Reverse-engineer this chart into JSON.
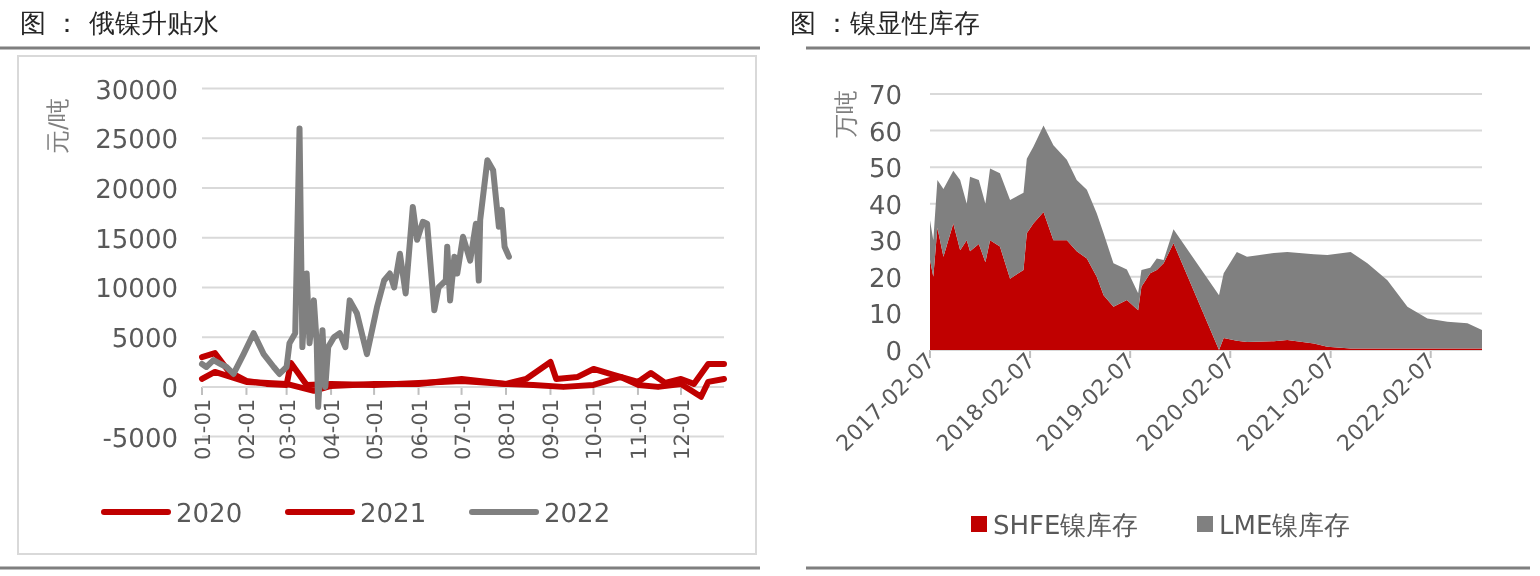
{
  "chart_data": [
    {
      "type": "line",
      "title": "图 ： 俄镍升贴水",
      "ylabel": "元/吨",
      "xlim": [
        "--01-01",
        "--12-31"
      ],
      "ylim": [
        -5000,
        30000
      ],
      "yticks": [
        -5000,
        0,
        5000,
        10000,
        15000,
        20000,
        25000,
        30000
      ],
      "xticks": [
        {
          "value": "--01-01",
          "label": "01-01"
        },
        {
          "value": "--02-01",
          "label": "02-01"
        },
        {
          "value": "--03-01",
          "label": "03-01"
        },
        {
          "value": "--04-01",
          "label": "04-01"
        },
        {
          "value": "--05-01",
          "label": "05-01"
        },
        {
          "value": "--06-01",
          "label": "06-01"
        },
        {
          "value": "--07-01",
          "label": "07-01"
        },
        {
          "value": "--08-01",
          "label": "08-01"
        },
        {
          "value": "--09-01",
          "label": "09-01"
        },
        {
          "value": "--10-01",
          "label": "10-01"
        },
        {
          "value": "--11-01",
          "label": "11-01"
        },
        {
          "value": "--12-01",
          "label": "12-01"
        }
      ],
      "grid": "y",
      "legend": "bottom",
      "series": [
        {
          "name": "2020",
          "color": "#c00000",
          "x": [
            "--01-01",
            "--01-10",
            "--01-20",
            "--02-01",
            "--02-15",
            "--03-01",
            "--03-04",
            "--03-15",
            "--04-01",
            "--05-01",
            "--06-01",
            "--07-01",
            "--08-01",
            "--08-15",
            "--09-01",
            "--09-05",
            "--09-20",
            "--10-01",
            "--10-15",
            "--11-01",
            "--11-10",
            "--11-20",
            "--12-01",
            "--12-10",
            "--12-20",
            "--12-31"
          ],
          "values": [
            3000,
            3400,
            1500,
            600,
            300,
            200,
            2400,
            200,
            300,
            200,
            400,
            600,
            300,
            800,
            2500,
            800,
            1000,
            1800,
            1200,
            500,
            1400,
            400,
            800,
            300,
            2300,
            2300
          ]
        },
        {
          "name": "2021",
          "color": "#c00000",
          "x": [
            "--01-01",
            "--01-10",
            "--02-01",
            "--03-01",
            "--03-20",
            "--04-01",
            "--05-01",
            "--06-01",
            "--07-01",
            "--08-01",
            "--08-20",
            "--09-10",
            "--10-01",
            "--10-20",
            "--11-01",
            "--11-15",
            "--12-01",
            "--12-15",
            "--12-20",
            "--12-31"
          ],
          "values": [
            800,
            1500,
            500,
            300,
            -400,
            100,
            300,
            300,
            800,
            300,
            200,
            0,
            200,
            1000,
            200,
            0,
            300,
            -1000,
            500,
            800
          ]
        },
        {
          "name": "2022",
          "color": "#808080",
          "x": [
            "--01-01",
            "--01-04",
            "--01-09",
            "--01-14",
            "--01-18",
            "--01-23",
            "--01-30",
            "--02-06",
            "--02-13",
            "--02-20",
            "--02-24",
            "--03-01",
            "--03-03",
            "--03-07",
            "--03-10",
            "--03-12",
            "--03-15",
            "--03-17",
            "--03-20",
            "--03-22",
            "--03-23",
            "--03-26",
            "--03-28",
            "--03-30",
            "--04-03",
            "--04-07",
            "--04-11",
            "--04-14",
            "--04-19",
            "--04-26",
            "--05-03",
            "--05-08",
            "--05-12",
            "--05-15",
            "--05-19",
            "--05-23",
            "--05-28",
            "--05-31",
            "--06-04",
            "--06-07",
            "--06-12",
            "--06-15",
            "--06-20",
            "--06-21",
            "--06-23",
            "--06-26",
            "--06-28",
            "--07-02",
            "--07-07",
            "--07-11",
            "--07-13",
            "--07-14",
            "--07-19",
            "--07-23",
            "--07-27",
            "--07-29",
            "--07-31",
            "--08-03"
          ],
          "values": [
            2300,
            2000,
            2700,
            2300,
            2000,
            1300,
            3300,
            5400,
            3300,
            2000,
            1300,
            2000,
            4400,
            5400,
            26000,
            4000,
            11400,
            4400,
            8700,
            4400,
            -2000,
            5700,
            0,
            4000,
            5000,
            5400,
            4000,
            8700,
            7400,
            3300,
            8000,
            10700,
            11400,
            10000,
            13400,
            9400,
            18100,
            14800,
            16600,
            16400,
            7700,
            10000,
            10700,
            14100,
            8700,
            13100,
            11400,
            15100,
            12700,
            16400,
            10700,
            16800,
            22800,
            21800,
            16100,
            17800,
            14100,
            13100
          ]
        }
      ]
    },
    {
      "type": "area",
      "title": "图 ：镍显性库存",
      "ylabel": "万吨",
      "stacked": true,
      "xlim": [
        "2017-02-07",
        "2022-08-13"
      ],
      "ylim": [
        0,
        70
      ],
      "yticks": [
        0,
        10,
        20,
        30,
        40,
        50,
        60,
        70
      ],
      "xticks": [
        "2017-02-07",
        "2018-02-07",
        "2019-02-07",
        "2020-02-07",
        "2021-02-07",
        "2022-02-07"
      ],
      "grid": "y",
      "legend": "bottom",
      "x": [
        "2017-02-07",
        "2017-02-19",
        "2017-03-06",
        "2017-03-28",
        "2017-05-03",
        "2017-05-28",
        "2017-06-21",
        "2017-07-03",
        "2017-08-04",
        "2017-08-28",
        "2017-09-14",
        "2017-10-20",
        "2017-11-26",
        "2018-01-14",
        "2018-01-26",
        "2018-02-19",
        "2018-03-28",
        "2018-05-03",
        "2018-06-21",
        "2018-07-27",
        "2018-09-02",
        "2018-10-08",
        "2018-11-02",
        "2018-12-08",
        "2019-01-26",
        "2019-03-08",
        "2019-03-20",
        "2019-04-21",
        "2019-05-15",
        "2019-06-09",
        "2019-07-15",
        "2019-12-28",
        "2020-01-14",
        "2020-03-02",
        "2020-04-08",
        "2020-07-15",
        "2020-09-02",
        "2020-12-08",
        "2021-01-26",
        "2021-04-21",
        "2021-06-21",
        "2021-09-02",
        "2021-11-14",
        "2022-01-26",
        "2022-04-09",
        "2022-06-21",
        "2022-08-13"
      ],
      "series": [
        {
          "name": "SHFE镍库存",
          "color": "#c00000",
          "values": [
            24.6,
            20,
            33.4,
            25.5,
            34.6,
            27.3,
            30,
            27,
            29,
            24,
            30,
            28.3,
            19.5,
            21.9,
            31.9,
            34.6,
            37.7,
            30,
            30,
            27,
            25,
            20,
            15,
            11.8,
            13.7,
            10.9,
            17.3,
            21,
            21.9,
            23.7,
            29.2,
            0,
            3.3,
            2.5,
            2.2,
            2.4,
            2.7,
            1.8,
            0.9,
            0.4,
            0.4,
            0.4,
            0.4,
            0.4,
            0.4,
            0.4,
            0.4
          ]
        },
        {
          "name": "LME镍库存",
          "color": "#808080",
          "values": [
            10.9,
            10,
            13.1,
            18.5,
            14.4,
            19.2,
            10,
            20.4,
            17.5,
            16,
            19.6,
            20,
            21.5,
            21.1,
            20.4,
            21,
            23.7,
            26,
            22,
            19.5,
            18.8,
            17.4,
            16.9,
            11.9,
            8.3,
            4.6,
            4.6,
            1.5,
            3.1,
            0.9,
            3.8,
            15,
            17.7,
            24.3,
            23.3,
            24.1,
            24.1,
            24.4,
            25.1,
            26.4,
            23.3,
            18.7,
            11.4,
            8.2,
            7.3,
            6.9,
            5.1
          ]
        }
      ]
    }
  ]
}
